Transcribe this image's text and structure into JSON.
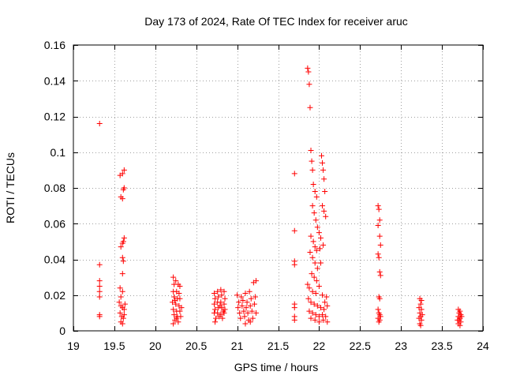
{
  "chart_data": {
    "type": "scatter",
    "title": "Day 173 of 2024, Rate Of TEC Index for receiver aruc",
    "xlabel": "GPS time / hours",
    "ylabel": "ROTI / TECUs",
    "xlim": [
      19,
      24
    ],
    "ylim": [
      0,
      0.16
    ],
    "x_ticks": [
      "19",
      "19.5",
      "20",
      "20.5",
      "21",
      "21.5",
      "22",
      "22.5",
      "23",
      "23.5",
      "24"
    ],
    "y_ticks": [
      "0",
      "0.02",
      "0.04",
      "0.06",
      "0.08",
      "0.1",
      "0.12",
      "0.14",
      "0.16"
    ],
    "grid": true,
    "marker": "+",
    "series": [
      {
        "color": "#ff0000",
        "points": [
          [
            19.32,
            0.116
          ],
          [
            19.32,
            0.037
          ],
          [
            19.32,
            0.028
          ],
          [
            19.32,
            0.025
          ],
          [
            19.32,
            0.022
          ],
          [
            19.32,
            0.019
          ],
          [
            19.32,
            0.009
          ],
          [
            19.32,
            0.008
          ],
          [
            19.57,
            0.087
          ],
          [
            19.6,
            0.088
          ],
          [
            19.62,
            0.09
          ],
          [
            19.58,
            0.075
          ],
          [
            19.6,
            0.074
          ],
          [
            19.61,
            0.079
          ],
          [
            19.62,
            0.08
          ],
          [
            19.58,
            0.047
          ],
          [
            19.6,
            0.049
          ],
          [
            19.61,
            0.05
          ],
          [
            19.62,
            0.052
          ],
          [
            19.6,
            0.041
          ],
          [
            19.61,
            0.039
          ],
          [
            19.6,
            0.032
          ],
          [
            19.57,
            0.024
          ],
          [
            19.6,
            0.022
          ],
          [
            19.58,
            0.019
          ],
          [
            19.56,
            0.016
          ],
          [
            19.58,
            0.014
          ],
          [
            19.6,
            0.013
          ],
          [
            19.62,
            0.012
          ],
          [
            19.57,
            0.01
          ],
          [
            19.59,
            0.008
          ],
          [
            19.61,
            0.007
          ],
          [
            19.58,
            0.005
          ],
          [
            19.6,
            0.004
          ],
          [
            19.62,
            0.009
          ],
          [
            19.63,
            0.015
          ],
          [
            20.22,
            0.03
          ],
          [
            20.25,
            0.028
          ],
          [
            20.23,
            0.026
          ],
          [
            20.28,
            0.026
          ],
          [
            20.3,
            0.025
          ],
          [
            20.22,
            0.022
          ],
          [
            20.26,
            0.022
          ],
          [
            20.29,
            0.021
          ],
          [
            20.23,
            0.019
          ],
          [
            20.27,
            0.018
          ],
          [
            20.3,
            0.018
          ],
          [
            20.21,
            0.016
          ],
          [
            20.25,
            0.015
          ],
          [
            20.29,
            0.014
          ],
          [
            20.22,
            0.012
          ],
          [
            20.26,
            0.011
          ],
          [
            20.3,
            0.011
          ],
          [
            20.23,
            0.009
          ],
          [
            20.27,
            0.008
          ],
          [
            20.31,
            0.008
          ],
          [
            20.24,
            0.006
          ],
          [
            20.28,
            0.005
          ],
          [
            20.22,
            0.004
          ],
          [
            20.26,
            0.007
          ],
          [
            20.32,
            0.013
          ],
          [
            20.24,
            0.017
          ],
          [
            20.72,
            0.021
          ],
          [
            20.76,
            0.022
          ],
          [
            20.8,
            0.023
          ],
          [
            20.84,
            0.022
          ],
          [
            20.73,
            0.018
          ],
          [
            20.77,
            0.019
          ],
          [
            20.81,
            0.02
          ],
          [
            20.85,
            0.018
          ],
          [
            20.72,
            0.015
          ],
          [
            20.76,
            0.016
          ],
          [
            20.8,
            0.016
          ],
          [
            20.84,
            0.015
          ],
          [
            20.73,
            0.012
          ],
          [
            20.77,
            0.013
          ],
          [
            20.81,
            0.013
          ],
          [
            20.85,
            0.012
          ],
          [
            20.72,
            0.01
          ],
          [
            20.76,
            0.01
          ],
          [
            20.8,
            0.009
          ],
          [
            20.84,
            0.01
          ],
          [
            20.74,
            0.007
          ],
          [
            20.78,
            0.008
          ],
          [
            20.82,
            0.007
          ],
          [
            20.73,
            0.005
          ],
          [
            20.79,
            0.014
          ],
          [
            20.83,
            0.011
          ],
          [
            21.0,
            0.02
          ],
          [
            21.05,
            0.019
          ],
          [
            21.1,
            0.021
          ],
          [
            21.15,
            0.022
          ],
          [
            21.2,
            0.027
          ],
          [
            21.23,
            0.028
          ],
          [
            21.02,
            0.016
          ],
          [
            21.07,
            0.017
          ],
          [
            21.12,
            0.016
          ],
          [
            21.17,
            0.018
          ],
          [
            21.22,
            0.019
          ],
          [
            21.01,
            0.013
          ],
          [
            21.06,
            0.014
          ],
          [
            21.11,
            0.013
          ],
          [
            21.16,
            0.014
          ],
          [
            21.21,
            0.015
          ],
          [
            21.03,
            0.01
          ],
          [
            21.08,
            0.011
          ],
          [
            21.13,
            0.01
          ],
          [
            21.18,
            0.011
          ],
          [
            21.23,
            0.01
          ],
          [
            21.04,
            0.007
          ],
          [
            21.09,
            0.008
          ],
          [
            21.14,
            0.006
          ],
          [
            21.19,
            0.007
          ],
          [
            21.1,
            0.004
          ],
          [
            21.16,
            0.005
          ],
          [
            21.7,
            0.088
          ],
          [
            21.7,
            0.056
          ],
          [
            21.7,
            0.039
          ],
          [
            21.7,
            0.037
          ],
          [
            21.7,
            0.015
          ],
          [
            21.7,
            0.013
          ],
          [
            21.7,
            0.008
          ],
          [
            21.7,
            0.006
          ],
          [
            21.86,
            0.147
          ],
          [
            21.87,
            0.145
          ],
          [
            21.88,
            0.138
          ],
          [
            21.89,
            0.125
          ],
          [
            21.9,
            0.101
          ],
          [
            21.91,
            0.095
          ],
          [
            21.92,
            0.09
          ],
          [
            21.93,
            0.082
          ],
          [
            21.95,
            0.078
          ],
          [
            21.97,
            0.075
          ],
          [
            22.03,
            0.098
          ],
          [
            22.04,
            0.094
          ],
          [
            22.05,
            0.09
          ],
          [
            22.06,
            0.085
          ],
          [
            22.07,
            0.078
          ],
          [
            22.04,
            0.07
          ],
          [
            22.06,
            0.067
          ],
          [
            22.08,
            0.064
          ],
          [
            21.92,
            0.07
          ],
          [
            21.94,
            0.066
          ],
          [
            21.96,
            0.062
          ],
          [
            21.98,
            0.058
          ],
          [
            22.0,
            0.055
          ],
          [
            22.02,
            0.052
          ],
          [
            21.9,
            0.053
          ],
          [
            21.93,
            0.05
          ],
          [
            21.95,
            0.047
          ],
          [
            21.97,
            0.045
          ],
          [
            22.01,
            0.046
          ],
          [
            22.05,
            0.048
          ],
          [
            21.89,
            0.044
          ],
          [
            21.92,
            0.041
          ],
          [
            21.95,
            0.038
          ],
          [
            21.98,
            0.035
          ],
          [
            22.02,
            0.038
          ],
          [
            21.91,
            0.032
          ],
          [
            21.94,
            0.03
          ],
          [
            21.97,
            0.028
          ],
          [
            22.0,
            0.025
          ],
          [
            21.86,
            0.026
          ],
          [
            21.88,
            0.024
          ],
          [
            21.92,
            0.022
          ],
          [
            21.96,
            0.021
          ],
          [
            22.04,
            0.02
          ],
          [
            21.87,
            0.018
          ],
          [
            21.9,
            0.016
          ],
          [
            21.94,
            0.015
          ],
          [
            21.98,
            0.014
          ],
          [
            22.02,
            0.013
          ],
          [
            22.06,
            0.012
          ],
          [
            22.1,
            0.014
          ],
          [
            21.88,
            0.011
          ],
          [
            21.92,
            0.01
          ],
          [
            21.96,
            0.009
          ],
          [
            22.0,
            0.008
          ],
          [
            22.04,
            0.009
          ],
          [
            22.08,
            0.008
          ],
          [
            21.9,
            0.007
          ],
          [
            21.95,
            0.006
          ],
          [
            22.0,
            0.005
          ],
          [
            22.05,
            0.006
          ],
          [
            22.1,
            0.005
          ],
          [
            22.07,
            0.016
          ],
          [
            22.09,
            0.019
          ],
          [
            22.72,
            0.07
          ],
          [
            22.73,
            0.068
          ],
          [
            22.74,
            0.062
          ],
          [
            22.72,
            0.059
          ],
          [
            22.74,
            0.053
          ],
          [
            22.75,
            0.048
          ],
          [
            22.72,
            0.043
          ],
          [
            22.73,
            0.041
          ],
          [
            22.74,
            0.033
          ],
          [
            22.75,
            0.031
          ],
          [
            22.73,
            0.019
          ],
          [
            22.74,
            0.018
          ],
          [
            22.72,
            0.012
          ],
          [
            22.73,
            0.01
          ],
          [
            22.74,
            0.009
          ],
          [
            22.75,
            0.008
          ],
          [
            22.72,
            0.007
          ],
          [
            22.74,
            0.006
          ],
          [
            22.73,
            0.005
          ],
          [
            23.23,
            0.018
          ],
          [
            23.25,
            0.017
          ],
          [
            23.24,
            0.015
          ],
          [
            23.22,
            0.013
          ],
          [
            23.25,
            0.012
          ],
          [
            23.23,
            0.01
          ],
          [
            23.24,
            0.008
          ],
          [
            23.22,
            0.007
          ],
          [
            23.25,
            0.006
          ],
          [
            23.23,
            0.004
          ],
          [
            23.24,
            0.003
          ],
          [
            23.26,
            0.009
          ],
          [
            23.7,
            0.012
          ],
          [
            23.72,
            0.011
          ],
          [
            23.71,
            0.01
          ],
          [
            23.73,
            0.009
          ],
          [
            23.7,
            0.008
          ],
          [
            23.72,
            0.007
          ],
          [
            23.71,
            0.006
          ],
          [
            23.73,
            0.005
          ],
          [
            23.7,
            0.004
          ],
          [
            23.72,
            0.003
          ],
          [
            23.74,
            0.008
          ],
          [
            23.69,
            0.006
          ]
        ]
      }
    ]
  }
}
